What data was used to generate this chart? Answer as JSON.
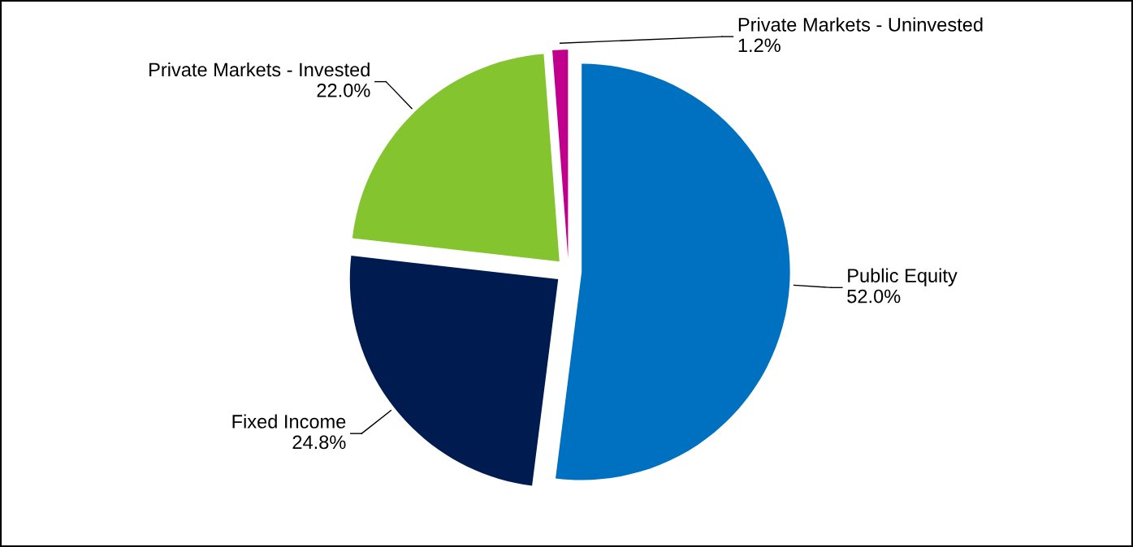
{
  "chart_data": {
    "type": "pie",
    "categories": [
      "Public Equity",
      "Fixed Income",
      "Private Markets - Invested",
      "Private Markets - Uninvested"
    ],
    "values": [
      52.0,
      24.8,
      22.0,
      1.2
    ],
    "value_labels": [
      "52.0%",
      "24.8%",
      "22.0%",
      "1.2%"
    ],
    "colors": [
      "#0070c0",
      "#001b4f",
      "#83c42f",
      "#c0008c"
    ],
    "legend": false
  }
}
